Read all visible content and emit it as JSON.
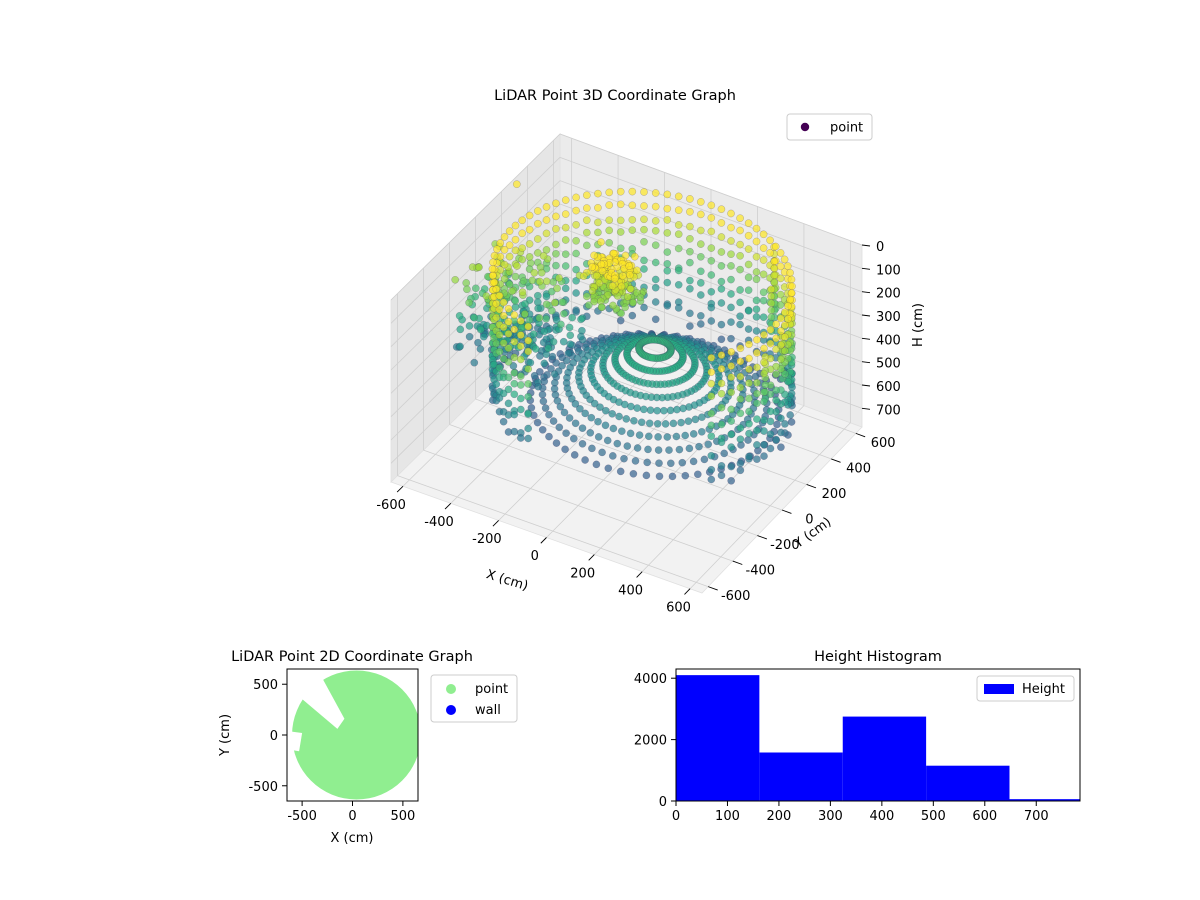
{
  "chart_data": [
    {
      "type": "scatter",
      "title": "LiDAR Point 3D Coordinate Graph",
      "xlabel": "X (cm)",
      "ylabel": "Y (cm)",
      "zlabel": "H (cm)",
      "xlim": [
        -650,
        650
      ],
      "ylim": [
        -650,
        650
      ],
      "zlim": [
        0,
        780
      ],
      "z_inverted": true,
      "xticks": [
        -600,
        -400,
        -200,
        0,
        200,
        400,
        600
      ],
      "yticks": [
        -600,
        -400,
        -200,
        0,
        200,
        400,
        600
      ],
      "zticks": [
        0,
        100,
        200,
        300,
        400,
        500,
        600,
        700
      ],
      "legend": {
        "position": "top-right",
        "entries": [
          "point"
        ]
      },
      "colormap": "viridis",
      "grid": true,
      "series": [
        {
          "name": "point",
          "color": "#440154",
          "structure": [
            {
              "part": "wall-ring",
              "radius": 560,
              "center": [
                60,
                0
              ],
              "h_range": [
                0,
                560
              ],
              "arc_deg": [
                -35,
                250
              ]
            },
            {
              "part": "floor-cone",
              "radius": 470,
              "center": [
                90,
                40
              ],
              "h_range": [
                250,
                560
              ]
            },
            {
              "part": "left-patch",
              "x_range": [
                -650,
                -250
              ],
              "y_range": [
                -200,
                150
              ],
              "h_range": [
                150,
                520
              ]
            },
            {
              "part": "center-clump",
              "center": [
                -120,
                100
              ],
              "h_range": [
                30,
                230
              ]
            },
            {
              "part": "poles",
              "positions": [
                [
                  320,
                  560,
                  80
                ],
                [
                  380,
                  450,
                  60
                ],
                [
                  420,
                  350,
                  110
                ],
                [
                  600,
                  100,
                  110
                ],
                [
                  600,
                  -40,
                  120
                ]
              ]
            }
          ]
        }
      ]
    },
    {
      "type": "scatter",
      "title": "LiDAR Point 2D Coordinate Graph",
      "xlabel": "X (cm)",
      "ylabel": "Y (cm)",
      "xlim": [
        -650,
        650
      ],
      "ylim": [
        -650,
        650
      ],
      "xticks": [
        -500,
        0,
        500
      ],
      "yticks": [
        -500,
        0,
        500
      ],
      "legend": {
        "position": "outside-right",
        "entries": [
          "point",
          "wall"
        ]
      },
      "series": [
        {
          "name": "point",
          "color": "#90ee90",
          "fill_radius": 640,
          "center": [
            40,
            0
          ]
        },
        {
          "name": "wall",
          "color": "#0000ff",
          "points": []
        }
      ]
    },
    {
      "type": "bar",
      "title": "Height Histogram",
      "xlabel": "",
      "ylabel": "",
      "xlim": [
        0,
        785
      ],
      "ylim": [
        0,
        4300
      ],
      "xticks": [
        0,
        100,
        200,
        300,
        400,
        500,
        600,
        700
      ],
      "yticks": [
        0,
        2000,
        4000
      ],
      "legend": {
        "position": "top-right",
        "entries": [
          "Height"
        ]
      },
      "series": [
        {
          "name": "Height",
          "color": "#0000ff",
          "bins": [
            {
              "x0": 0,
              "x1": 162,
              "value": 4100
            },
            {
              "x0": 162,
              "x1": 324,
              "value": 1580
            },
            {
              "x0": 324,
              "x1": 486,
              "value": 2750
            },
            {
              "x0": 486,
              "x1": 648,
              "value": 1150
            },
            {
              "x0": 648,
              "x1": 785,
              "value": 60
            }
          ]
        }
      ]
    }
  ]
}
